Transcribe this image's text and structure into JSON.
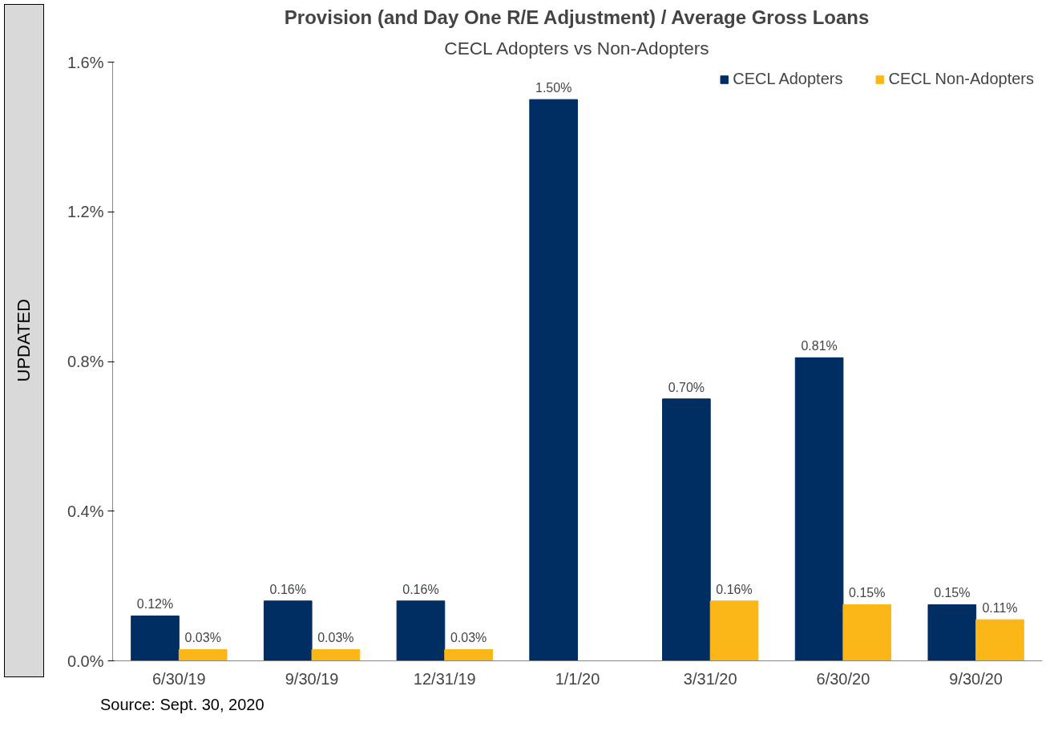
{
  "chart_data": {
    "type": "bar",
    "title": "Provision (and Day One R/E Adjustment) / Average Gross Loans",
    "subtitle": "CECL Adopters vs Non-Adopters",
    "categories": [
      "6/30/19",
      "9/30/19",
      "12/31/19",
      "1/1/20",
      "3/31/20",
      "6/30/20",
      "9/30/20"
    ],
    "series": [
      {
        "name": "CECL Adopters",
        "color": "#002d62",
        "values": [
          0.12,
          0.16,
          0.16,
          1.5,
          0.7,
          0.81,
          0.15
        ],
        "value_labels": [
          "0.12%",
          "0.16%",
          "0.16%",
          "1.50%",
          "0.70%",
          "0.81%",
          "0.15%"
        ]
      },
      {
        "name": "CECL Non-Adopters",
        "color": "#fbb717",
        "values": [
          0.03,
          0.03,
          0.03,
          null,
          0.16,
          0.15,
          0.11
        ],
        "value_labels": [
          "0.03%",
          "0.03%",
          "0.03%",
          null,
          "0.16%",
          "0.15%",
          "0.11%"
        ]
      }
    ],
    "ylim": [
      0,
      1.6
    ],
    "yticks": [
      {
        "value": 0,
        "label": "0.0%"
      },
      {
        "value": 0.4,
        "label": "0.4%"
      },
      {
        "value": 0.8,
        "label": "0.8%"
      },
      {
        "value": 1.2,
        "label": "1.2%"
      },
      {
        "value": 1.6,
        "label": "1.6%"
      }
    ],
    "grid": false,
    "legend": "top right",
    "annotations": [
      "UPDATED",
      "Source: Sept. 30, 2020"
    ]
  }
}
